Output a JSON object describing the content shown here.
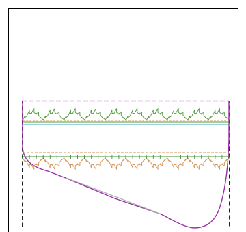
{
  "title": "",
  "colors": {
    "background": "#ffffff",
    "outer_frame": "#000000",
    "dashed_guides": "#222222",
    "envelope": "#9b2fa6",
    "top_band": "#4f9a3a",
    "top_band_line": "#3aa1c9",
    "bottom_band": "#d49357",
    "bottom_band_line": "#3e8f38",
    "diagonal": "#b0b0b0"
  },
  "elements": {
    "outer_frame": "frame",
    "top_motif": "scallop-stitch",
    "bottom_motif": "scallop-stitch-inverted",
    "scallop_repeats": 10
  }
}
